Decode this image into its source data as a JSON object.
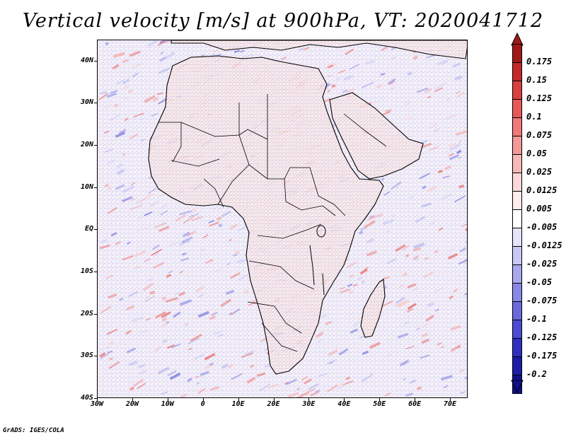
{
  "title": "Vertical velocity [m/s] at 900hPa, VT: 2020041712",
  "credit": "GrADS: IGES/COLA",
  "lat_labels": [
    "40N",
    "30N",
    "20N",
    "10N",
    "EQ",
    "10S",
    "20S",
    "30S",
    "40S"
  ],
  "lat_values": [
    40,
    30,
    20,
    10,
    0,
    -10,
    -20,
    -30,
    -40
  ],
  "lon_labels": [
    "30W",
    "20W",
    "10W",
    "0",
    "10E",
    "20E",
    "30E",
    "40E",
    "50E",
    "60E",
    "70E"
  ],
  "lon_values": [
    -30,
    -20,
    -10,
    0,
    10,
    20,
    30,
    40,
    50,
    60,
    70
  ],
  "colorbar": {
    "labels": [
      "0.175",
      "0.15",
      "0.125",
      "0.1",
      "0.075",
      "0.05",
      "0.025",
      "0.0125",
      "0.005",
      "-0.005",
      "-0.0125",
      "-0.025",
      "-0.05",
      "-0.075",
      "-0.1",
      "-0.125",
      "-0.175",
      "-0.2"
    ],
    "colors": [
      "#a01818",
      "#c42828",
      "#d84040",
      "#e85858",
      "#f07878",
      "#f49898",
      "#f8b8b8",
      "#fcd8d8",
      "#ffecec",
      "#ffffff",
      "#e4e4fa",
      "#c8c8f4",
      "#a8a8ee",
      "#8888e6",
      "#6a6ade",
      "#4c4cd2",
      "#3030c0",
      "#1c1ca6",
      "#10108a"
    ]
  }
}
